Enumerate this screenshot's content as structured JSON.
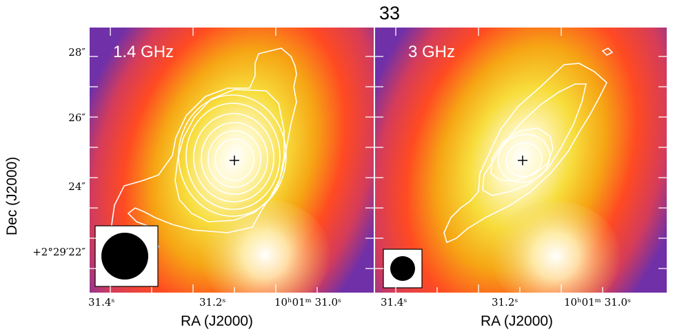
{
  "figure": {
    "title": "33",
    "xlabel": "RA (J2000)",
    "ylabel": "Dec (J2000)",
    "ytick_labels": [
      "28″",
      "26″",
      "24″",
      "+2°29′22″"
    ],
    "xtick_labels": [
      "31.4ˢ",
      "31.2ˢ",
      "10ʰ01ᵐ 31.0ˢ"
    ]
  },
  "chart_data": [
    {
      "type": "heatmap",
      "panel_label": "1.4 GHz",
      "colormap": "magenta-red-orange-yellow-white",
      "colors": {
        "low": "#7b2ea8",
        "mid": "#ff4b22",
        "high": "#fff4c0",
        "peak": "#ffffff",
        "contour": "#ffffff"
      },
      "marker": "+",
      "beam": "large filled circle",
      "contour_levels": 8,
      "xticks": [
        "31.4s",
        "31.2s",
        "10h01m31.0s"
      ],
      "yticks": [
        "28″",
        "26″",
        "24″",
        "+2°29′22″"
      ]
    },
    {
      "type": "heatmap",
      "panel_label": "3 GHz",
      "colormap": "magenta-red-orange-yellow-white",
      "colors": {
        "low": "#7b2ea8",
        "mid": "#ff4b22",
        "high": "#fff4c0",
        "peak": "#ffffff",
        "contour": "#ffffff"
      },
      "marker": "+",
      "beam": "small filled circle",
      "contour_levels": 5,
      "xticks": [
        "31.4s",
        "31.2s",
        "10h01m31.0s"
      ]
    }
  ]
}
